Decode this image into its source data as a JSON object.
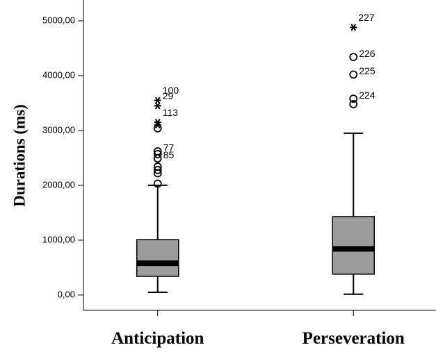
{
  "chart_data": {
    "type": "box",
    "y_label": "Durations (ms)",
    "categories": [
      "Anticipation",
      "Perseveration"
    ],
    "ylim": [
      -280,
      5380
    ],
    "yticks": [
      {
        "value": 0,
        "label": "0,00"
      },
      {
        "value": 1000,
        "label": "1000,00"
      },
      {
        "value": 2000,
        "label": "2000,00"
      },
      {
        "value": 3000,
        "label": "3000,00"
      },
      {
        "value": 4000,
        "label": "4000,00"
      },
      {
        "value": 5000,
        "label": "5000,00"
      }
    ],
    "color": "#9c9c9c",
    "boxes": [
      {
        "whisker_low": 50,
        "q1": 340,
        "median": 580,
        "q3": 1010,
        "whisker_high": 2000,
        "outliers": [
          {
            "value": 2030
          },
          {
            "value": 2220
          },
          {
            "value": 2280
          },
          {
            "value": 2340
          },
          {
            "value": 2490,
            "label": "85"
          },
          {
            "value": 2570
          },
          {
            "value": 2620,
            "label": "77"
          },
          {
            "value": 3040
          }
        ],
        "extremes": [
          {
            "value": 3100
          },
          {
            "value": 3150,
            "label": "113"
          },
          {
            "value": 3450,
            "label": "29"
          },
          {
            "value": 3550,
            "label": "100"
          }
        ]
      },
      {
        "whisker_low": 15,
        "q1": 380,
        "median": 840,
        "q3": 1430,
        "whisker_high": 2950,
        "outliers": [
          {
            "value": 3480
          },
          {
            "value": 3580,
            "label": "224"
          },
          {
            "value": 4020,
            "label": "225"
          },
          {
            "value": 4340,
            "label": "226"
          }
        ],
        "extremes": [
          {
            "value": 4880,
            "label": "227"
          }
        ]
      }
    ]
  }
}
